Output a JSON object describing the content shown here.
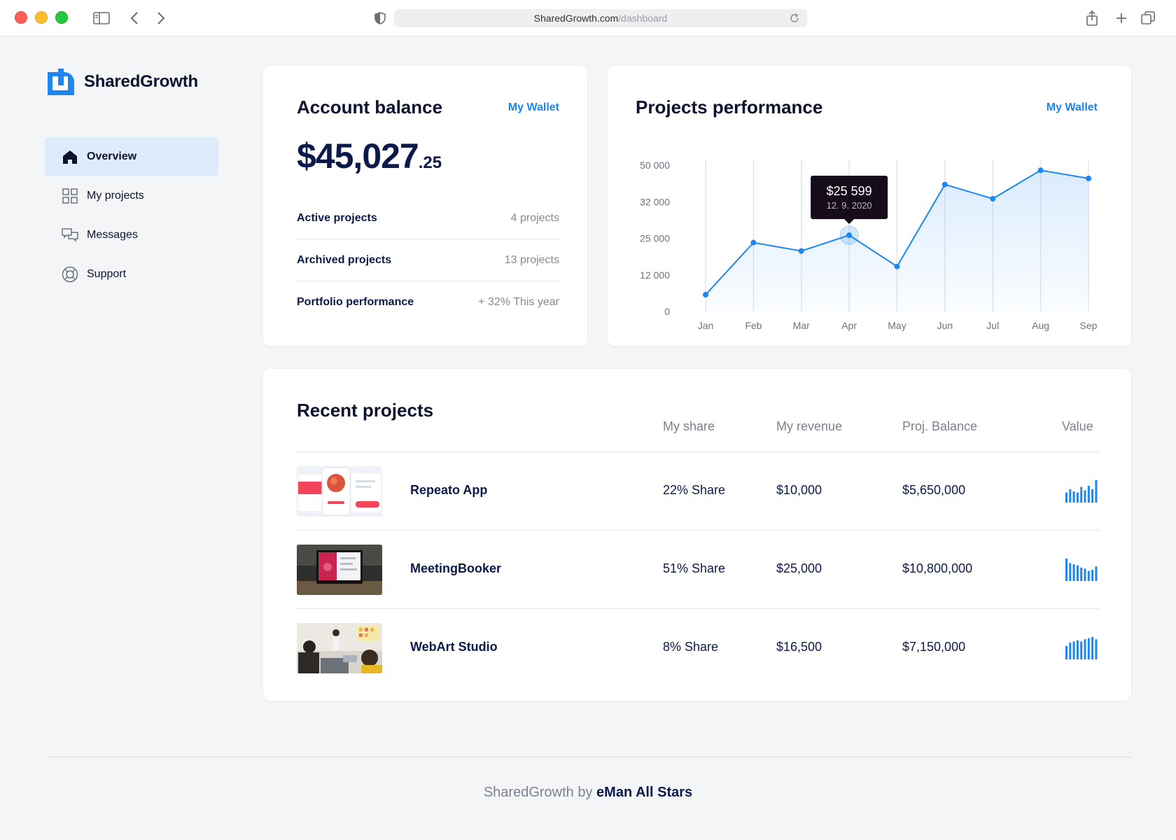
{
  "browser": {
    "url_domain": "SharedGrowth.com",
    "url_path": "/dashboard"
  },
  "brand": {
    "name": "SharedGrowth",
    "accent": "#1d86f0"
  },
  "sidebar": {
    "items": [
      {
        "label": "Overview",
        "icon": "home-icon",
        "active": true
      },
      {
        "label": "My projects",
        "icon": "grid-icon",
        "active": false
      },
      {
        "label": "Messages",
        "icon": "chat-icon",
        "active": false
      },
      {
        "label": "Support",
        "icon": "lifebuoy-icon",
        "active": false
      }
    ]
  },
  "account": {
    "title": "Account balance",
    "link": "My Wallet",
    "balance_main": "$45,027",
    "balance_cents": ".25",
    "stats": [
      {
        "label": "Active projects",
        "value": "4 projects"
      },
      {
        "label": "Archived projects",
        "value": "13 projects"
      },
      {
        "label": "Portfolio performance",
        "value": "+ 32% This year"
      }
    ]
  },
  "performance": {
    "title": "Projects performance",
    "link": "My Wallet",
    "tooltip": {
      "value": "$25 599",
      "date": "12. 9. 2020"
    }
  },
  "chart_data": {
    "type": "area",
    "x": [
      "Jan",
      "Feb",
      "Mar",
      "Apr",
      "May",
      "Jun",
      "Jul",
      "Aug",
      "Sep"
    ],
    "series": [
      {
        "values": [
          5500,
          23500,
          20500,
          25599,
          15000,
          40500,
          33500,
          47500,
          43500
        ]
      }
    ],
    "yticks": [
      0,
      12000,
      25000,
      32000,
      50000
    ],
    "ytick_labels": [
      "0",
      "12 000",
      "25 000",
      "32 000",
      "50 000"
    ],
    "highlight_index": 3,
    "grid": "vertical",
    "color": "#1d86f0"
  },
  "recent": {
    "title": "Recent projects",
    "columns": [
      "My share",
      "My revenue",
      "Proj. Balance",
      "Value"
    ],
    "rows": [
      {
        "name": "Repeato App",
        "share": "22% Share",
        "revenue": "$10,000",
        "balance": "$5,650,000",
        "spark": [
          0.45,
          0.6,
          0.5,
          0.45,
          0.7,
          0.55,
          0.75,
          0.6,
          1.0
        ]
      },
      {
        "name": "MeetingBooker",
        "share": "51% Share",
        "revenue": "$25,000",
        "balance": "$10,800,000",
        "spark": [
          1.0,
          0.8,
          0.75,
          0.7,
          0.6,
          0.55,
          0.45,
          0.5,
          0.65
        ]
      },
      {
        "name": "WebArt Studio",
        "share": "8% Share",
        "revenue": "$16,500",
        "balance": "$7,150,000",
        "spark": [
          0.6,
          0.75,
          0.8,
          0.85,
          0.8,
          0.9,
          0.95,
          1.0,
          0.9
        ]
      }
    ]
  },
  "footer": {
    "prefix": "SharedGrowth by",
    "company": "eMan All Stars"
  }
}
